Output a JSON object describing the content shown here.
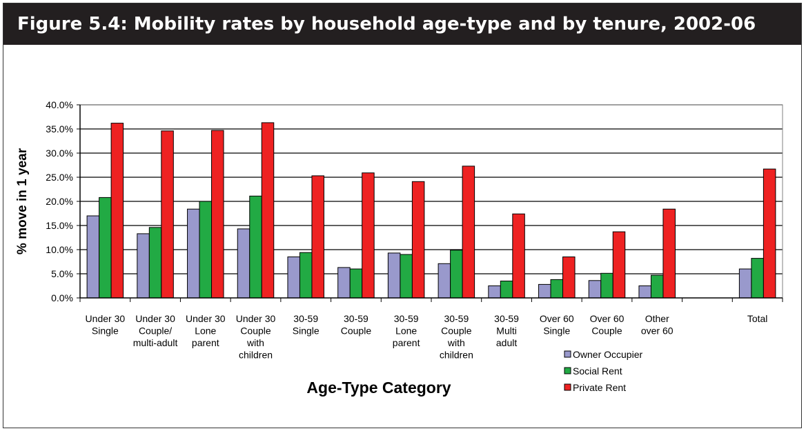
{
  "figure_title": "Figure 5.4: Mobility rates by household age-type and by tenure, 2002-06",
  "colors": {
    "title_band": "#231f20",
    "owner_occupier": "#9999cc",
    "social_rent": "#22aa44",
    "private_rent": "#ee2222"
  },
  "chart_data": {
    "type": "bar",
    "title": "",
    "xlabel": "Age-Type Category",
    "ylabel": "% move in 1 year",
    "ylim": [
      0,
      0.4
    ],
    "yticks": [
      0,
      0.05,
      0.1,
      0.15,
      0.2,
      0.25,
      0.3,
      0.35,
      0.4
    ],
    "ytick_labels": [
      "0.0%",
      "5.0%",
      "10.0%",
      "15.0%",
      "20.0%",
      "25.0%",
      "30.0%",
      "35.0%",
      "40.0%"
    ],
    "grid": true,
    "legend_position": "bottom-right",
    "categories": [
      [
        "Under 30",
        "Single"
      ],
      [
        "Under 30",
        "Couple/",
        "multi-adult"
      ],
      [
        "Under 30",
        "Lone",
        "parent"
      ],
      [
        "Under 30",
        "Couple",
        "with",
        "children"
      ],
      [
        "30-59",
        "Single"
      ],
      [
        "30-59",
        "Couple"
      ],
      [
        "30-59",
        "Lone",
        "parent"
      ],
      [
        "30-59",
        "Couple",
        "with",
        "children"
      ],
      [
        "30-59",
        "Multi",
        "adult"
      ],
      [
        "Over 60",
        "Single"
      ],
      [
        "Over 60",
        "Couple"
      ],
      [
        "Other",
        "over 60"
      ],
      [],
      [
        "Total"
      ]
    ],
    "series": [
      {
        "name": "Owner Occupier",
        "values": [
          0.17,
          0.133,
          0.184,
          0.143,
          0.085,
          0.063,
          0.093,
          0.071,
          0.025,
          0.028,
          0.036,
          0.025,
          null,
          0.06
        ]
      },
      {
        "name": "Social Rent",
        "values": [
          0.208,
          0.146,
          0.2,
          0.211,
          0.094,
          0.06,
          0.09,
          0.099,
          0.035,
          0.038,
          0.051,
          0.047,
          null,
          0.082
        ]
      },
      {
        "name": "Private Rent",
        "values": [
          0.362,
          0.346,
          0.347,
          0.363,
          0.253,
          0.259,
          0.241,
          0.273,
          0.174,
          0.085,
          0.137,
          0.184,
          null,
          0.267
        ]
      }
    ]
  }
}
